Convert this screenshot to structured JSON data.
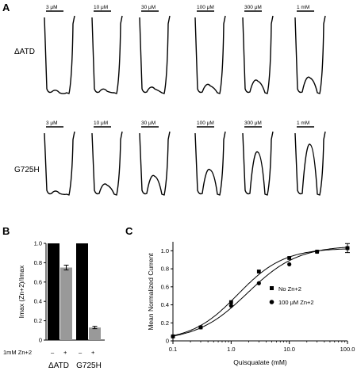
{
  "panels": {
    "a": {
      "letter": "A",
      "rows": [
        {
          "label": "ΔATD",
          "concentrations": [
            "3 μM",
            "10 μM",
            "30 μM",
            "100 μM",
            "300 μM",
            "1 mM"
          ]
        },
        {
          "label": "G725H",
          "concentrations": [
            "3 μM",
            "10 μM",
            "30 μM",
            "100 μM",
            "300 μM",
            "1 mM"
          ]
        }
      ]
    },
    "b": {
      "letter": "B",
      "ylabel": "Imax (Zn+2)/Imax",
      "treatment_label": "1mM Zn+2",
      "signs": [
        "–",
        "+",
        "–",
        "+"
      ],
      "groups": [
        "ΔATD",
        "G725H"
      ]
    },
    "c": {
      "letter": "C",
      "legend": [
        "No Zn+2",
        "100 μM Zn+2"
      ]
    }
  },
  "chart_data": [
    {
      "type": "bar",
      "categories": [
        "ΔATD –",
        "ΔATD +",
        "G725H –",
        "G725H +"
      ],
      "values": [
        1.0,
        0.75,
        1.0,
        0.13
      ],
      "errors": [
        0,
        0.025,
        0,
        0.012
      ],
      "colors": [
        "#000000",
        "#999999",
        "#000000",
        "#999999"
      ],
      "title": "",
      "xlabel": "",
      "ylabel": "Imax (Zn+2)/Imax",
      "ylim": [
        0,
        1.0
      ],
      "yticks": [
        "0",
        "0.2",
        "0.4",
        "0.6",
        "0.8",
        "1.0"
      ]
    },
    {
      "type": "scatter",
      "title": "",
      "xlabel": "Quisqualate (mM)",
      "ylabel": "Mean Normalized Current",
      "xscale": "log",
      "xlim": [
        0.1,
        100
      ],
      "ylim": [
        0,
        1.1
      ],
      "xticks": [
        "0.1",
        "1.0",
        "10.0",
        "100.0"
      ],
      "yticks": [
        "0",
        "0.2",
        "0.4",
        "0.6",
        "0.8",
        "1.0"
      ],
      "grid": false,
      "legend_position": "lower-right",
      "series": [
        {
          "name": "No Zn+2",
          "marker": "square",
          "x": [
            0.1,
            0.3,
            1,
            3,
            10,
            30,
            100
          ],
          "y": [
            0.05,
            0.15,
            0.43,
            0.77,
            0.92,
            0.99,
            1.03
          ],
          "fit": {
            "type": "hill",
            "ec50": 1.3,
            "n": 1.1,
            "top": 1.03,
            "bottom": 0.0
          }
        },
        {
          "name": "100 μM Zn+2",
          "marker": "circle",
          "x": [
            0.1,
            0.3,
            1,
            3,
            10,
            30,
            100
          ],
          "y": [
            0.05,
            0.15,
            0.39,
            0.64,
            0.85,
            0.99,
            1.03
          ],
          "error_last": 0.05,
          "fit": {
            "type": "hill",
            "ec50": 1.9,
            "n": 1.0,
            "top": 1.06,
            "bottom": 0.0
          }
        }
      ]
    }
  ]
}
